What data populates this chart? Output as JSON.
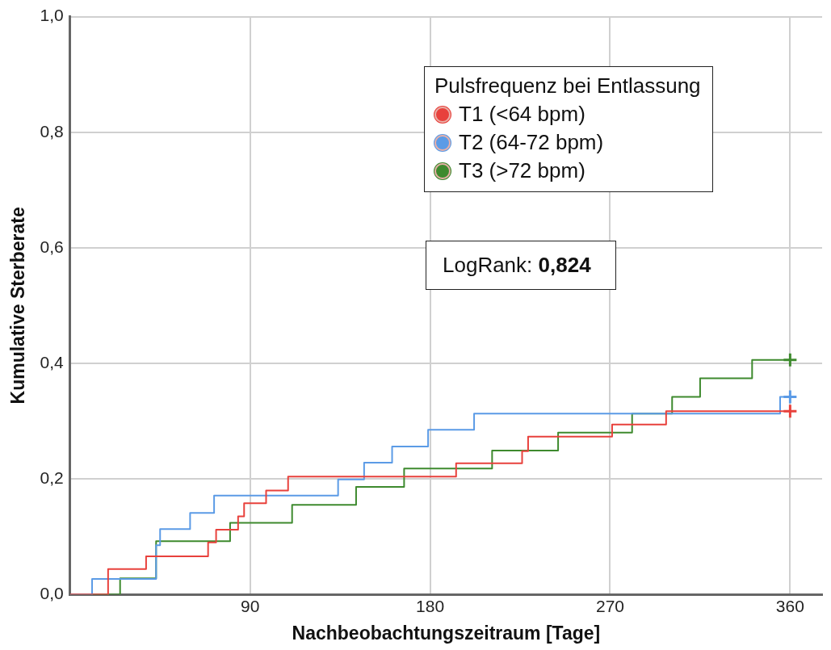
{
  "chart_data": {
    "type": "step",
    "xlabel": "Nachbeobachtungszeitraum [Tage]",
    "ylabel": "Kumulative Sterberate",
    "legend_title": "Pulsfrequenz bei Entlassung",
    "legend": "top right",
    "grid": true,
    "line_style": "solid",
    "xlim": [
      0,
      376
    ],
    "xticks": [
      90,
      180,
      270,
      360
    ],
    "ylim": [
      0,
      1
    ],
    "yticks": [
      {
        "value": 0,
        "label": "0,0"
      },
      {
        "value": 0.2,
        "label": "0,2"
      },
      {
        "value": 0.4,
        "label": "0,4"
      },
      {
        "value": 0.6,
        "label": "0,6"
      },
      {
        "value": 0.8,
        "label": "0,8"
      },
      {
        "value": 1,
        "label": "1,0"
      }
    ],
    "annotations": [
      "LogRank: 0,824"
    ],
    "series": [
      {
        "name": "T1 (<64 bpm)",
        "color": "#e8413c",
        "x": [
          0,
          19,
          38,
          69,
          73,
          84,
          87,
          98,
          109,
          193,
          226,
          229,
          271,
          298,
          360
        ],
        "values": [
          0,
          0.044,
          0.066,
          0.09,
          0.112,
          0.135,
          0.158,
          0.18,
          0.204,
          0.227,
          0.248,
          0.273,
          0.294,
          0.317,
          0.317
        ]
      },
      {
        "name": "T2 (64-72 bpm)",
        "color": "#5b9be6",
        "x": [
          0,
          11,
          43,
          45,
          60,
          72,
          134,
          147,
          161,
          179,
          202,
          355,
          360
        ],
        "values": [
          0,
          0.027,
          0.085,
          0.113,
          0.141,
          0.171,
          0.199,
          0.228,
          0.256,
          0.285,
          0.313,
          0.342,
          0.342
        ]
      },
      {
        "name": "T3 (>72 bpm)",
        "color": "#3e8a2e",
        "x": [
          0,
          25,
          43,
          80,
          111,
          143,
          167,
          211,
          244,
          281,
          301,
          315,
          341,
          360
        ],
        "values": [
          0,
          0.028,
          0.092,
          0.124,
          0.155,
          0.186,
          0.218,
          0.249,
          0.28,
          0.313,
          0.342,
          0.374,
          0.406,
          0.406
        ]
      }
    ]
  }
}
